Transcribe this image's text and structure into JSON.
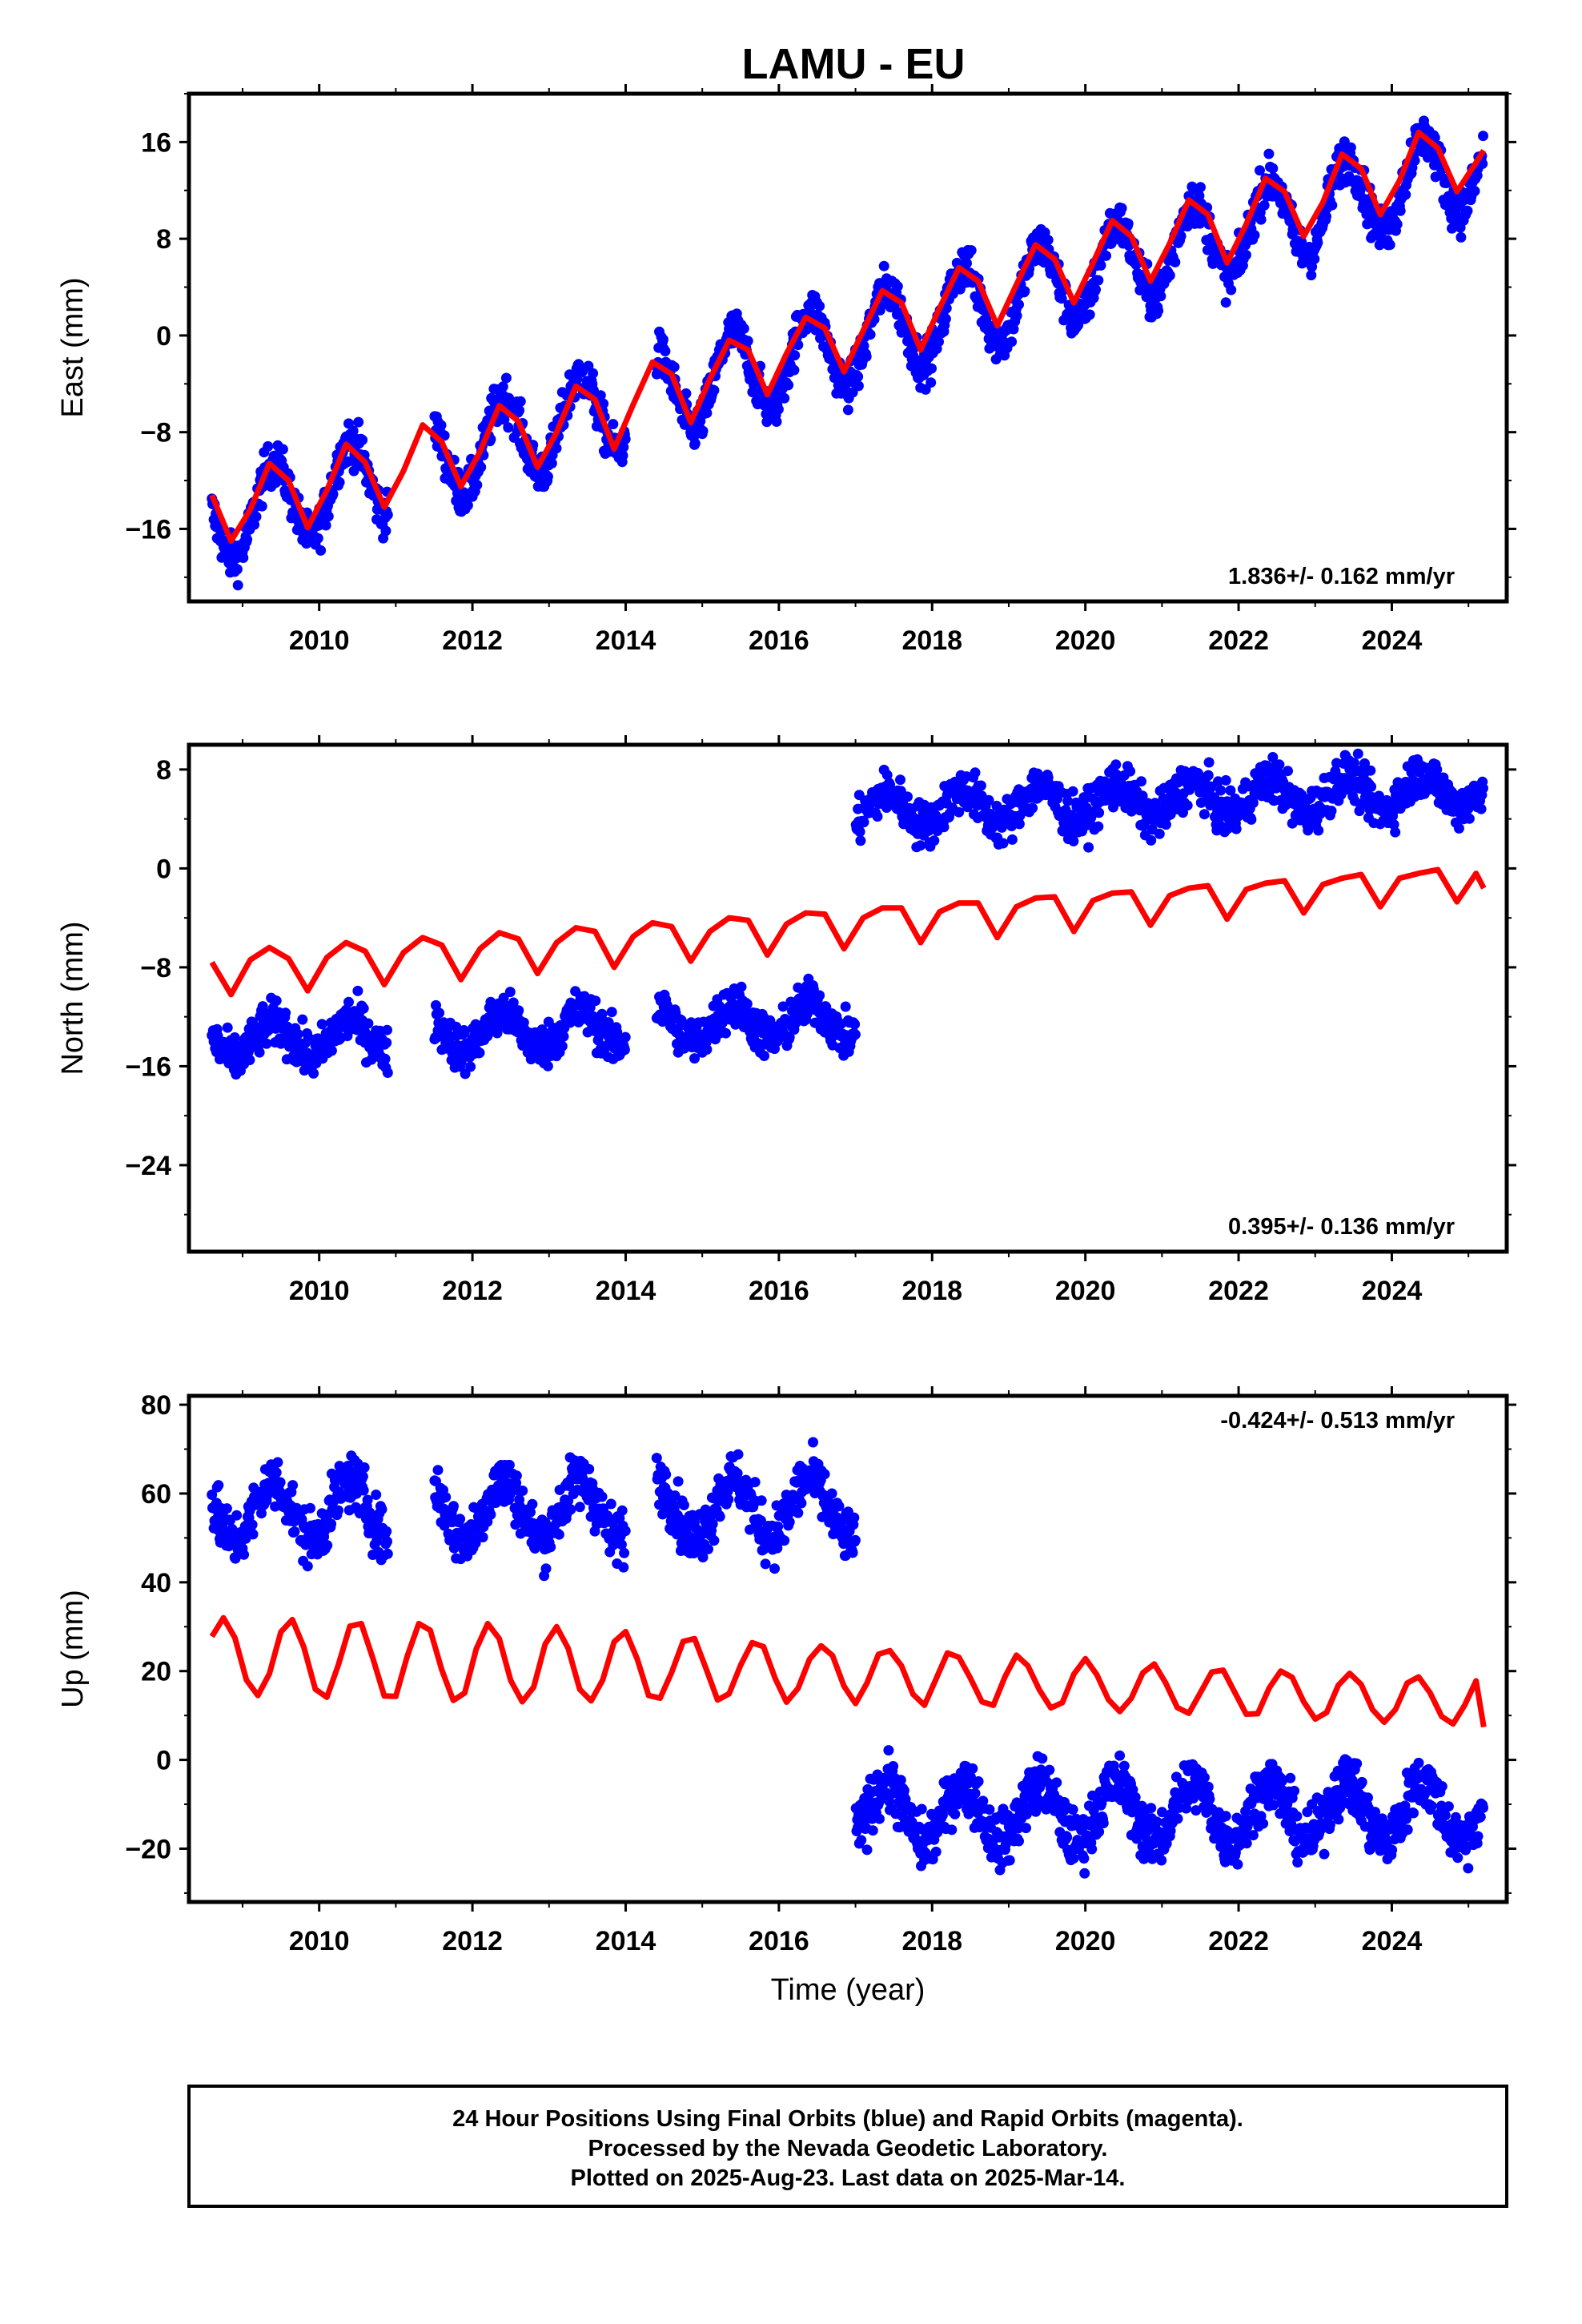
{
  "title": "LAMU - EU",
  "footer": {
    "line1": "24 Hour Positions Using Final Orbits (blue) and Rapid Orbits (magenta).",
    "line2": "Processed by the Nevada Geodetic Laboratory.",
    "line3": "Plotted on 2025-Aug-23. Last data on 2025-Mar-14."
  },
  "colors": {
    "observations": "#0000ff",
    "model": "#ff0000",
    "frame": "#000000"
  },
  "chart_data": [
    {
      "type": "scatter",
      "name": "east",
      "ylabel": "East (mm)",
      "xlabel": "",
      "rate_label": "1.836+/- 0.162 mm/yr",
      "rate_position": "bottom-right",
      "xlim": [
        2008.3,
        2025.5
      ],
      "ylim": [
        -22,
        20
      ],
      "xticks": [
        "2010",
        "2012",
        "2014",
        "2016",
        "2018",
        "2020",
        "2022",
        "2024"
      ],
      "yticks": [
        "16",
        "8",
        "0",
        "-8",
        "-16"
      ],
      "grid": false,
      "model": {
        "x": [
          2008.6,
          2008.85,
          2009.1,
          2009.35,
          2009.6,
          2009.85,
          2010.1,
          2010.35,
          2010.6,
          2010.85,
          2011.1,
          2011.35,
          2011.6,
          2011.85,
          2012.1,
          2012.35,
          2012.6,
          2012.85,
          2013.1,
          2013.35,
          2013.6,
          2013.85,
          2014.1,
          2014.35,
          2014.6,
          2014.85,
          2015.1,
          2015.35,
          2015.6,
          2015.85,
          2016.1,
          2016.35,
          2016.6,
          2016.85,
          2017.1,
          2017.35,
          2017.6,
          2017.85,
          2018.1,
          2018.35,
          2018.6,
          2018.85,
          2019.1,
          2019.35,
          2019.6,
          2019.85,
          2020.1,
          2020.35,
          2020.6,
          2020.85,
          2021.1,
          2021.35,
          2021.6,
          2021.85,
          2022.1,
          2022.35,
          2022.6,
          2022.85,
          2023.1,
          2023.35,
          2023.6,
          2023.85,
          2024.1,
          2024.35,
          2024.6,
          2024.85,
          2025.1,
          2025.2
        ],
        "y": [
          -13.2,
          -17.0,
          -14.4,
          -10.6,
          -12.0,
          -15.9,
          -12.8,
          -9.0,
          -10.5,
          -14.2,
          -11.2,
          -7.4,
          -8.8,
          -12.5,
          -9.6,
          -5.8,
          -7.1,
          -10.9,
          -8.0,
          -4.2,
          -5.3,
          -9.4,
          -5.7,
          -2.2,
          -3.2,
          -7.2,
          -3.6,
          -0.4,
          -1.2,
          -4.9,
          -1.5,
          1.5,
          0.6,
          -3.0,
          0.4,
          3.7,
          2.7,
          -1.2,
          2.3,
          5.6,
          4.5,
          0.8,
          4.2,
          7.5,
          6.3,
          2.7,
          6.0,
          9.5,
          8.2,
          4.5,
          7.6,
          11.2,
          10.0,
          6.0,
          9.2,
          13.0,
          11.9,
          8.2,
          11.0,
          15.0,
          13.8,
          10.0,
          12.8,
          16.8,
          15.5,
          11.9,
          14.3,
          15.3
        ]
      },
      "observations": {
        "trend_start": -15.5,
        "trend_slope": 1.8,
        "seasonal_amplitude": 3.5,
        "gaps": [
          [
            2010.9,
            2011.5
          ],
          [
            2014.0,
            2014.4
          ]
        ]
      }
    },
    {
      "type": "scatter",
      "name": "north",
      "ylabel": "North (mm)",
      "xlabel": "",
      "rate_label": "0.395+/- 0.136 mm/yr",
      "rate_position": "bottom-right",
      "xlim": [
        2008.3,
        2025.5
      ],
      "ylim": [
        -31,
        10
      ],
      "xticks": [
        "2010",
        "2012",
        "2014",
        "2016",
        "2018",
        "2020",
        "2022",
        "2024"
      ],
      "yticks": [
        "8",
        "0",
        "-8",
        "-16",
        "-24"
      ],
      "grid": false,
      "model": {
        "x": [
          2008.6,
          2008.85,
          2009.1,
          2009.35,
          2009.6,
          2009.85,
          2010.1,
          2010.35,
          2010.6,
          2010.85,
          2011.1,
          2011.35,
          2011.6,
          2011.85,
          2012.1,
          2012.35,
          2012.6,
          2012.85,
          2013.1,
          2013.35,
          2013.6,
          2013.85,
          2014.1,
          2014.35,
          2014.6,
          2014.85,
          2015.1,
          2015.35,
          2015.6,
          2015.85,
          2016.1,
          2016.35,
          2016.6,
          2016.85,
          2017.1,
          2017.35,
          2017.6,
          2017.85,
          2018.1,
          2018.35,
          2018.6,
          2018.85,
          2019.1,
          2019.35,
          2019.6,
          2019.85,
          2020.1,
          2020.35,
          2020.6,
          2020.85,
          2021.1,
          2021.35,
          2021.6,
          2021.85,
          2022.1,
          2022.35,
          2022.6,
          2022.85,
          2023.1,
          2023.35,
          2023.6,
          2023.85,
          2024.1,
          2024.35,
          2024.6,
          2024.85,
          2025.1,
          2025.2
        ],
        "y": [
          -7.6,
          -10.2,
          -7.4,
          -6.4,
          -7.3,
          -9.9,
          -7.2,
          -6.0,
          -6.7,
          -9.4,
          -6.8,
          -5.6,
          -6.2,
          -9.0,
          -6.5,
          -5.2,
          -5.7,
          -8.5,
          -6.0,
          -4.8,
          -5.1,
          -8.0,
          -5.5,
          -4.4,
          -4.7,
          -7.5,
          -5.1,
          -4.0,
          -4.2,
          -7.0,
          -4.5,
          -3.6,
          -3.7,
          -6.5,
          -4.0,
          -3.2,
          -3.2,
          -6.0,
          -3.5,
          -2.8,
          -2.8,
          -5.6,
          -3.1,
          -2.4,
          -2.3,
          -5.1,
          -2.6,
          -2.0,
          -1.9,
          -4.6,
          -2.2,
          -1.6,
          -1.4,
          -4.1,
          -1.7,
          -1.2,
          -1.0,
          -3.6,
          -1.3,
          -0.8,
          -0.5,
          -3.1,
          -0.8,
          -0.4,
          -0.1,
          -2.7,
          -0.4,
          -1.6
        ]
      },
      "observations": {
        "offset_epoch": 2017.0,
        "level_before": -14.0,
        "level_after": 2.8,
        "slope": 0.22,
        "seasonal_amplitude": 1.4,
        "gaps": [
          [
            2010.9,
            2011.5
          ],
          [
            2014.0,
            2014.4
          ]
        ]
      }
    },
    {
      "type": "scatter",
      "name": "up",
      "ylabel": "Up (mm)",
      "xlabel": "Time (year)",
      "rate_label": "-0.424+/- 0.513 mm/yr",
      "rate_position": "top-right",
      "xlim": [
        2008.3,
        2025.5
      ],
      "ylim": [
        -32,
        82
      ],
      "xticks": [
        "2010",
        "2012",
        "2014",
        "2016",
        "2018",
        "2020",
        "2022",
        "2024"
      ],
      "yticks": [
        "80",
        "60",
        "40",
        "20",
        "0",
        "-20"
      ],
      "grid": false,
      "model": {
        "x": [
          2008.6,
          2008.75,
          2008.9,
          2009.05,
          2009.2,
          2009.35,
          2009.5,
          2009.65,
          2009.8,
          2009.95,
          2010.1,
          2010.25,
          2010.4,
          2010.55,
          2010.7,
          2010.85,
          2011.0,
          2011.15,
          2011.3,
          2011.45,
          2011.6,
          2011.75,
          2011.9,
          2012.05,
          2012.2,
          2012.35,
          2012.5,
          2012.65,
          2012.8,
          2012.95,
          2013.1,
          2013.25,
          2013.4,
          2013.55,
          2013.7,
          2013.85,
          2014.0,
          2014.15,
          2014.3,
          2014.45,
          2014.6,
          2014.75,
          2014.9,
          2015.05,
          2015.2,
          2015.35,
          2015.5,
          2015.65,
          2015.8,
          2015.95,
          2016.1,
          2016.25,
          2016.4,
          2016.55,
          2016.7,
          2016.85,
          2017.0,
          2017.15,
          2017.3,
          2017.45,
          2017.6,
          2017.75,
          2017.9,
          2018.05,
          2018.2,
          2018.35,
          2018.5,
          2018.65,
          2018.8,
          2018.95,
          2019.1,
          2019.25,
          2019.4,
          2019.55,
          2019.7,
          2019.85,
          2020.0,
          2020.15,
          2020.3,
          2020.45,
          2020.6,
          2020.75,
          2020.9,
          2021.05,
          2021.2,
          2021.35,
          2021.5,
          2021.65,
          2021.8,
          2021.95,
          2022.1,
          2022.25,
          2022.4,
          2022.55,
          2022.7,
          2022.85,
          2023.0,
          2023.15,
          2023.3,
          2023.45,
          2023.6,
          2023.75,
          2023.9,
          2024.05,
          2024.2,
          2024.35,
          2024.5,
          2024.65,
          2024.8,
          2024.95,
          2025.1,
          2025.2
        ],
        "y": [
          27.8,
          32.0,
          27.5,
          18.0,
          14.5,
          19.4,
          28.8,
          31.6,
          25.4,
          15.9,
          14.1,
          21.4,
          30.1,
          30.7,
          22.9,
          14.4,
          14.3,
          23.4,
          30.7,
          29.2,
          20.3,
          13.4,
          15.1,
          25.0,
          30.7,
          27.3,
          17.9,
          13.1,
          16.4,
          26.1,
          30.0,
          25.1,
          15.9,
          13.3,
          18.0,
          26.6,
          28.9,
          22.8,
          14.5,
          13.9,
          19.7,
          26.7,
          27.3,
          20.5,
          13.5,
          14.9,
          21.3,
          26.4,
          25.5,
          18.4,
          13.0,
          16.1,
          22.7,
          25.7,
          23.5,
          16.6,
          12.7,
          17.3,
          23.8,
          24.6,
          21.2,
          14.8,
          12.3,
          18.2,
          24.1,
          23.1,
          18.4,
          13.1,
          12.3,
          18.7,
          23.6,
          21.2,
          15.8,
          11.7,
          12.9,
          19.3,
          22.8,
          19.2,
          13.6,
          10.9,
          13.9,
          19.6,
          21.6,
          17.3,
          11.8,
          10.5,
          15.1,
          19.8,
          20.2,
          15.2,
          10.3,
          10.4,
          16.2,
          20.0,
          18.6,
          13.1,
          9.2,
          10.7,
          16.8,
          19.5,
          17.0,
          11.3,
          8.5,
          11.4,
          17.3,
          18.7,
          15.1,
          9.8,
          8.1,
          12.3,
          17.8,
          7.4
        ]
      },
      "observations": {
        "offset_epoch": 2017.0,
        "level_before": 56.0,
        "level_after": -13.0,
        "slope": 0.1,
        "seasonal_amplitude": 6.5,
        "gaps": [
          [
            2010.9,
            2011.5
          ],
          [
            2014.0,
            2014.4
          ]
        ]
      }
    }
  ]
}
